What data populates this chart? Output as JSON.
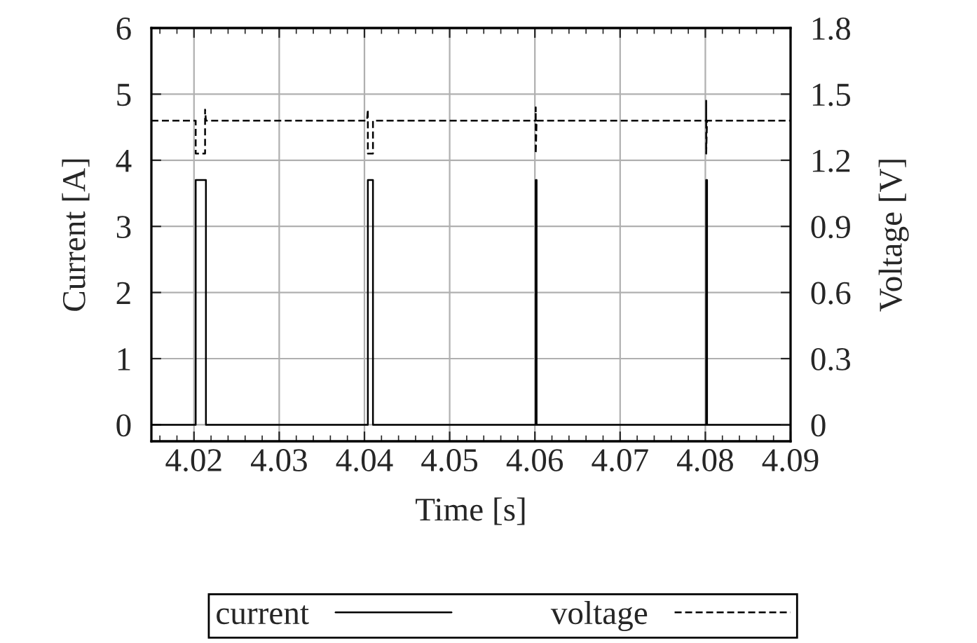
{
  "chart_data": {
    "type": "line",
    "xlabel": "Time [s]",
    "ylabel": "Current [A]",
    "y2label": "Voltage [V]",
    "xlim": [
      4.015,
      4.09
    ],
    "xticks": [
      4.02,
      4.03,
      4.04,
      4.05,
      4.06,
      4.07,
      4.08,
      4.09
    ],
    "ylim": [
      -0.25,
      6
    ],
    "yticks": [
      0,
      1,
      2,
      3,
      4,
      5,
      6
    ],
    "y2lim": [
      -0.075,
      1.8
    ],
    "y2ticks": [
      0,
      0.3,
      0.6,
      0.9,
      1.2,
      1.5,
      1.8
    ],
    "grid": true,
    "legend": "bottom",
    "series": [
      {
        "name": "current",
        "color": "#000000",
        "line_style": "solid",
        "x": [
          4.015,
          4.0202,
          4.0202,
          4.0214,
          4.0214,
          4.0404,
          4.0404,
          4.041,
          4.041,
          4.0601,
          4.0601,
          4.0602,
          4.0602,
          4.0801,
          4.0801,
          4.0802,
          4.0802,
          4.09
        ],
        "values": [
          0,
          0,
          3.7,
          3.7,
          0,
          0,
          3.7,
          3.7,
          0,
          0,
          3.7,
          3.7,
          0,
          0,
          3.7,
          3.7,
          0,
          0
        ]
      },
      {
        "name": "voltage",
        "color": "#000000",
        "line_style": "dashed",
        "axis": "y2",
        "x": [
          4.015,
          4.0202,
          4.0202,
          4.0213,
          4.0213,
          4.0214,
          4.0403,
          4.0404,
          4.0404,
          4.041,
          4.041,
          4.0601,
          4.0601,
          4.0601,
          4.0602,
          4.0801,
          4.0801,
          4.0801,
          4.0802,
          4.09
        ],
        "values": [
          1.38,
          1.38,
          1.23,
          1.23,
          1.43,
          1.38,
          1.38,
          1.43,
          1.23,
          1.23,
          1.38,
          1.38,
          1.44,
          1.23,
          1.38,
          1.38,
          1.47,
          1.23,
          1.38,
          1.38
        ]
      }
    ]
  }
}
